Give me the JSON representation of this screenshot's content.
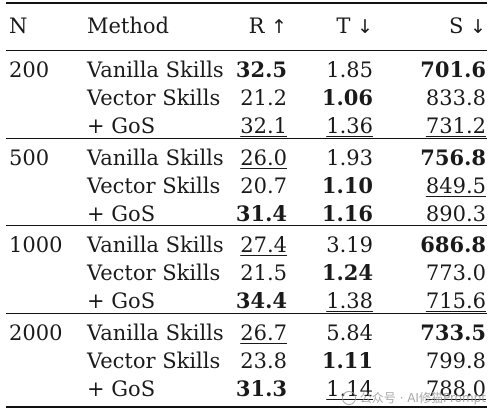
{
  "table": {
    "headers": {
      "n": "N",
      "method": "Method",
      "r": "R",
      "r_arrow": "↑",
      "t": "T",
      "t_arrow": "↓",
      "s": "S",
      "s_arrow": "↓"
    },
    "groups": [
      {
        "n": "200",
        "rows": [
          {
            "method": "Vanilla Skills",
            "r": "32.5",
            "t": "1.85",
            "s": "701.6"
          },
          {
            "method": "Vector Skills",
            "r": "21.2",
            "t": "1.06",
            "s": "833.8"
          },
          {
            "method": "+ GoS",
            "r": "32.1",
            "t": "1.36",
            "s": "731.2"
          }
        ]
      },
      {
        "n": "500",
        "rows": [
          {
            "method": "Vanilla Skills",
            "r": "26.0",
            "t": "1.93",
            "s": "756.8"
          },
          {
            "method": "Vector Skills",
            "r": "20.7",
            "t": "1.10",
            "s": "849.5"
          },
          {
            "method": "+ GoS",
            "r": "31.4",
            "t": "1.16",
            "s": "890.3"
          }
        ]
      },
      {
        "n": "1000",
        "rows": [
          {
            "method": "Vanilla Skills",
            "r": "27.4",
            "t": "3.19",
            "s": "686.8"
          },
          {
            "method": "Vector Skills",
            "r": "21.5",
            "t": "1.24",
            "s": "773.0"
          },
          {
            "method": "+ GoS",
            "r": "34.4",
            "t": "1.38",
            "s": "715.6"
          }
        ]
      },
      {
        "n": "2000",
        "rows": [
          {
            "method": "Vanilla Skills",
            "r": "26.7",
            "t": "5.84",
            "s": "733.5"
          },
          {
            "method": "Vector Skills",
            "r": "23.8",
            "t": "1.11",
            "s": "799.8"
          },
          {
            "method": "+ GoS",
            "r": "31.3",
            "t": "1.14",
            "s": "788.0"
          }
        ]
      }
    ]
  },
  "watermark": {
    "text": "公众号 · AI修猫Prompt"
  }
}
